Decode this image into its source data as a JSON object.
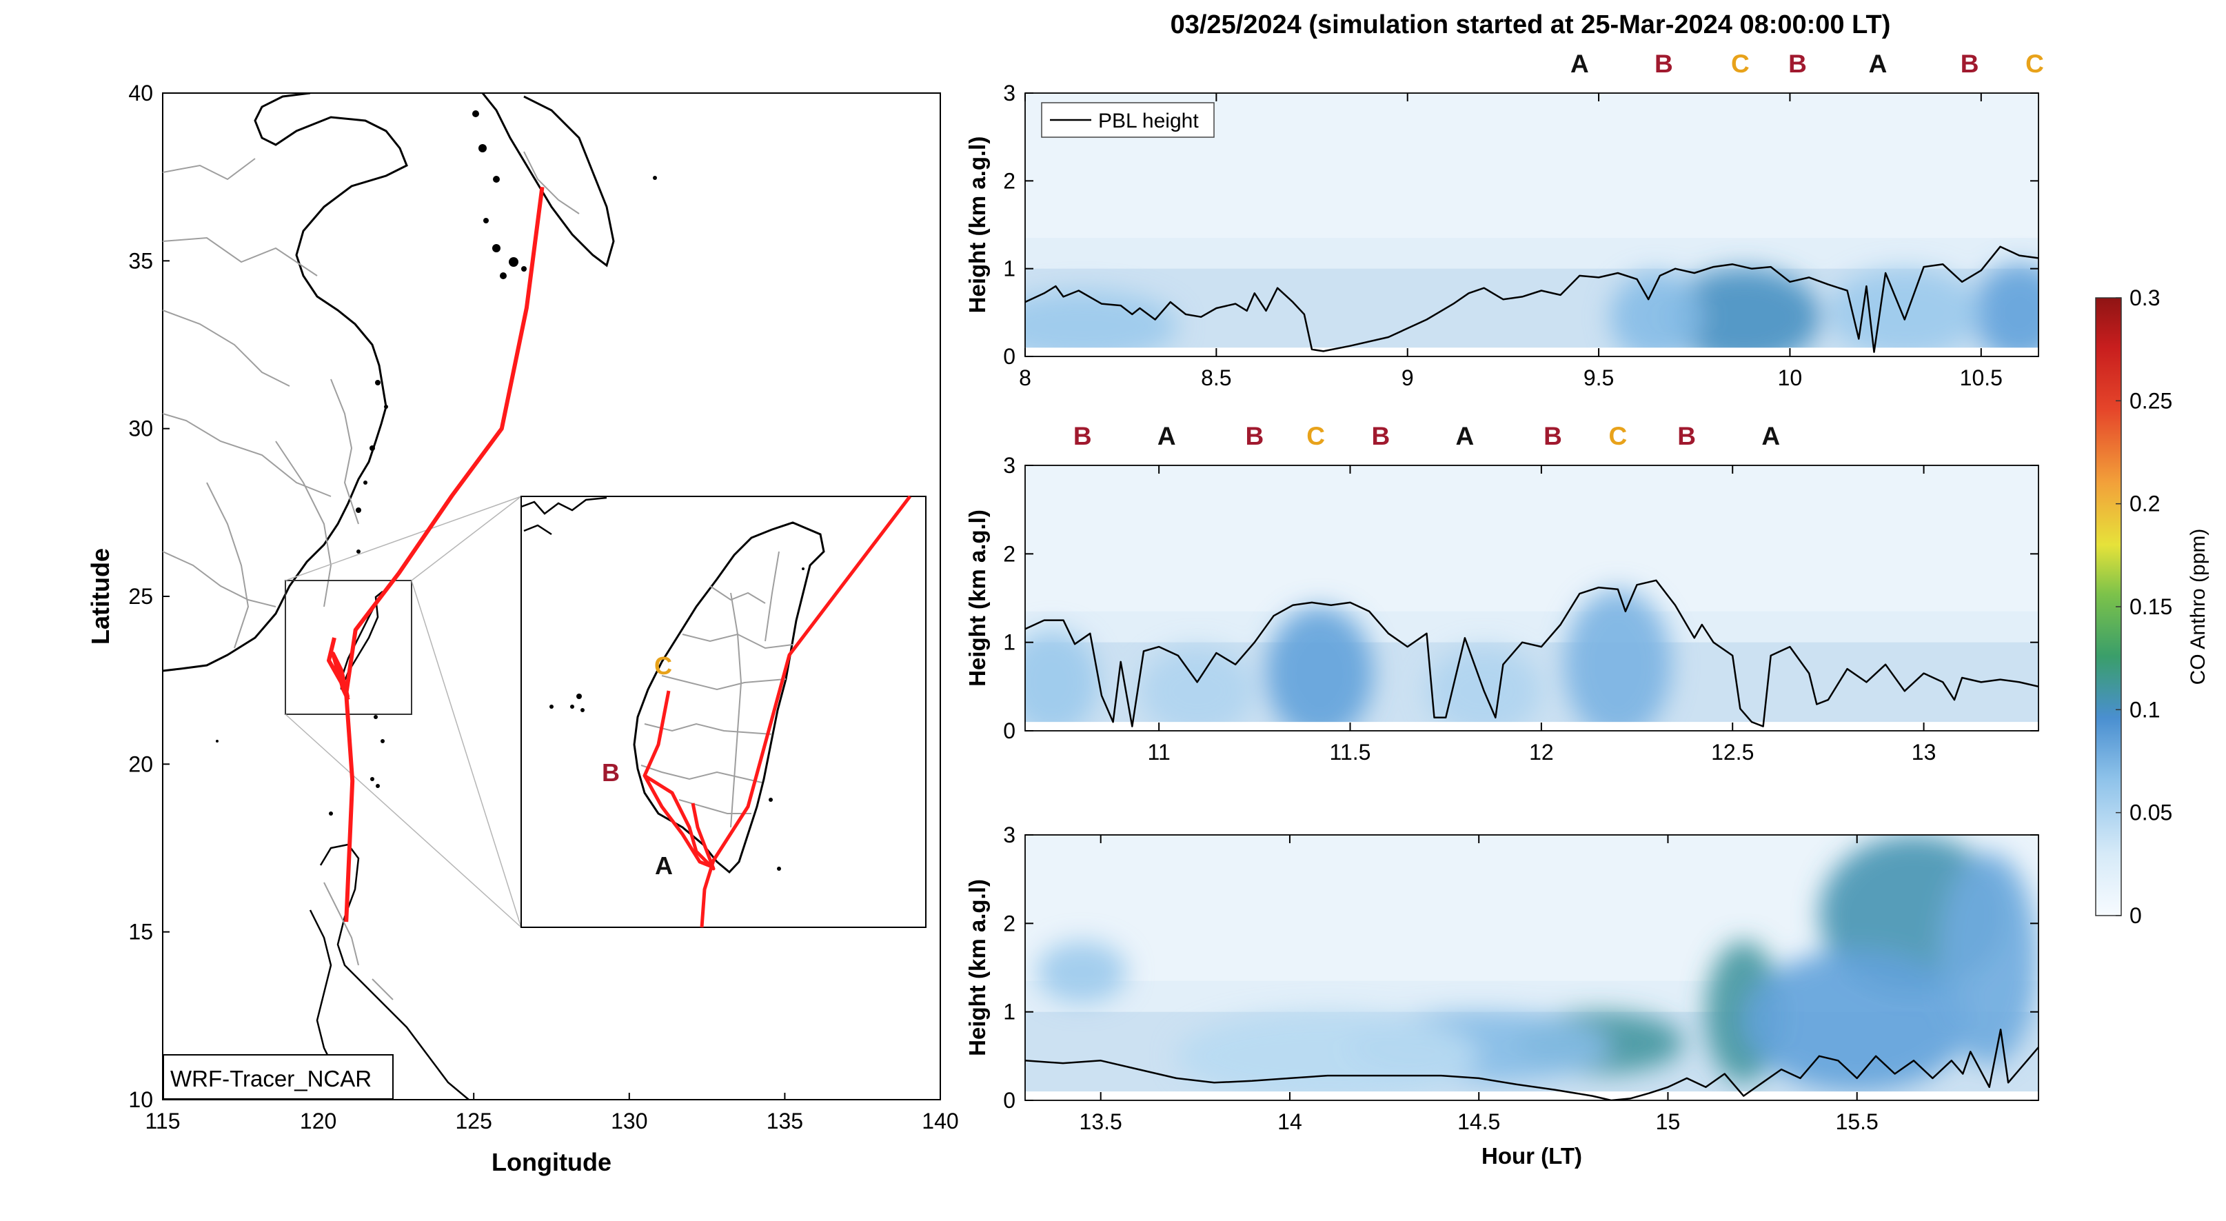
{
  "figure": {
    "title": "03/25/2024 (simulation started at 25-Mar-2024 08:00:00 LT)",
    "colors": {
      "track": "#ff1a1a",
      "marker_A": "#111111",
      "marker_B": "#a0192e",
      "marker_C": "#e8a21a",
      "pbl_line": "#000000",
      "land_border": "#9e9e9e",
      "coast": "#000000"
    }
  },
  "map": {
    "xlabel": "Longitude",
    "ylabel": "Latitude",
    "xlim": [
      115,
      140
    ],
    "ylim": [
      10,
      40
    ],
    "xticks": [
      "115",
      "120",
      "125",
      "130",
      "135",
      "140"
    ],
    "yticks": [
      "10",
      "15",
      "20",
      "25",
      "30",
      "35",
      "40"
    ],
    "model_label": "WRF-Tracer_NCAR",
    "track_main": [
      [
        120.9,
        15.3
      ],
      [
        121.1,
        19.5
      ],
      [
        120.9,
        22.1
      ],
      [
        121.2,
        24.0
      ],
      [
        122.6,
        25.7
      ],
      [
        124.3,
        28.0
      ],
      [
        125.9,
        30.0
      ],
      [
        126.7,
        33.6
      ],
      [
        127.2,
        37.2
      ]
    ],
    "inset_extent": {
      "lon": [
        119.0,
        123.0
      ],
      "lat": [
        21.5,
        26.0
      ]
    },
    "inset_labels": [
      {
        "text": "C",
        "color_key": "marker_C"
      },
      {
        "text": "B",
        "color_key": "marker_B"
      },
      {
        "text": "A",
        "color_key": "marker_A"
      }
    ]
  },
  "panels": [
    {
      "xlim": [
        8.0,
        10.65
      ],
      "xticks": [
        "8",
        "8.5",
        "9",
        "9.5",
        "10",
        "10.5"
      ],
      "ylabel": "Height (km a.g.l)",
      "yticks": [
        "0",
        "1",
        "2",
        "3"
      ],
      "ylim": [
        0,
        3
      ],
      "legend": "PBL height",
      "markers": [
        {
          "label": "A",
          "x": 9.45
        },
        {
          "label": "B",
          "x": 9.67
        },
        {
          "label": "C",
          "x": 9.87
        },
        {
          "label": "B",
          "x": 10.02
        },
        {
          "label": "A",
          "x": 10.23
        },
        {
          "label": "B",
          "x": 10.47
        },
        {
          "label": "C",
          "x": 10.64
        }
      ],
      "pbl": [
        [
          8.0,
          0.62
        ],
        [
          8.05,
          0.72
        ],
        [
          8.08,
          0.8
        ],
        [
          8.1,
          0.68
        ],
        [
          8.14,
          0.75
        ],
        [
          8.2,
          0.6
        ],
        [
          8.25,
          0.58
        ],
        [
          8.28,
          0.48
        ],
        [
          8.3,
          0.55
        ],
        [
          8.34,
          0.42
        ],
        [
          8.38,
          0.62
        ],
        [
          8.42,
          0.48
        ],
        [
          8.46,
          0.45
        ],
        [
          8.5,
          0.55
        ],
        [
          8.55,
          0.6
        ],
        [
          8.58,
          0.52
        ],
        [
          8.6,
          0.72
        ],
        [
          8.63,
          0.52
        ],
        [
          8.66,
          0.78
        ],
        [
          8.7,
          0.62
        ],
        [
          8.73,
          0.48
        ],
        [
          8.75,
          0.08
        ],
        [
          8.78,
          0.06
        ],
        [
          8.85,
          0.12
        ],
        [
          8.95,
          0.22
        ],
        [
          9.05,
          0.42
        ],
        [
          9.12,
          0.6
        ],
        [
          9.16,
          0.72
        ],
        [
          9.2,
          0.78
        ],
        [
          9.25,
          0.65
        ],
        [
          9.3,
          0.68
        ],
        [
          9.35,
          0.75
        ],
        [
          9.4,
          0.7
        ],
        [
          9.45,
          0.92
        ],
        [
          9.5,
          0.9
        ],
        [
          9.55,
          0.95
        ],
        [
          9.6,
          0.88
        ],
        [
          9.63,
          0.65
        ],
        [
          9.66,
          0.92
        ],
        [
          9.7,
          1.0
        ],
        [
          9.75,
          0.95
        ],
        [
          9.8,
          1.02
        ],
        [
          9.85,
          1.05
        ],
        [
          9.9,
          1.0
        ],
        [
          9.95,
          1.02
        ],
        [
          10.0,
          0.85
        ],
        [
          10.05,
          0.9
        ],
        [
          10.1,
          0.82
        ],
        [
          10.15,
          0.75
        ],
        [
          10.18,
          0.2
        ],
        [
          10.2,
          0.8
        ],
        [
          10.22,
          0.05
        ],
        [
          10.25,
          0.95
        ],
        [
          10.3,
          0.42
        ],
        [
          10.35,
          1.02
        ],
        [
          10.4,
          1.05
        ],
        [
          10.45,
          0.85
        ],
        [
          10.5,
          0.98
        ],
        [
          10.55,
          1.25
        ],
        [
          10.6,
          1.15
        ],
        [
          10.65,
          1.12
        ]
      ],
      "co_blobs": [
        {
          "x": 9.88,
          "y": 0.45,
          "rx": 0.2,
          "ry": 0.55,
          "ppm": 0.1
        },
        {
          "x": 10.6,
          "y": 0.5,
          "rx": 0.12,
          "ry": 0.55,
          "ppm": 0.085
        },
        {
          "x": 9.65,
          "y": 0.45,
          "rx": 0.12,
          "ry": 0.5,
          "ppm": 0.07
        },
        {
          "x": 8.15,
          "y": 0.35,
          "rx": 0.25,
          "ry": 0.4,
          "ppm": 0.06
        },
        {
          "x": 10.3,
          "y": 0.5,
          "rx": 0.2,
          "ry": 0.5,
          "ppm": 0.06
        }
      ]
    },
    {
      "xlim": [
        10.65,
        13.3
      ],
      "xticks": [
        "11",
        "11.5",
        "12",
        "12.5",
        "13"
      ],
      "ylabel": "Height (km a.g.l)",
      "yticks": [
        "0",
        "1",
        "2",
        "3"
      ],
      "ylim": [
        0,
        3
      ],
      "markers": [
        {
          "label": "B",
          "x": 10.8
        },
        {
          "label": "A",
          "x": 11.02
        },
        {
          "label": "B",
          "x": 11.25
        },
        {
          "label": "C",
          "x": 11.41
        },
        {
          "label": "B",
          "x": 11.58
        },
        {
          "label": "A",
          "x": 11.8
        },
        {
          "label": "B",
          "x": 12.03
        },
        {
          "label": "C",
          "x": 12.2
        },
        {
          "label": "B",
          "x": 12.38
        },
        {
          "label": "A",
          "x": 12.6
        }
      ],
      "pbl": [
        [
          10.65,
          1.15
        ],
        [
          10.7,
          1.25
        ],
        [
          10.75,
          1.25
        ],
        [
          10.78,
          0.98
        ],
        [
          10.82,
          1.1
        ],
        [
          10.85,
          0.4
        ],
        [
          10.88,
          0.1
        ],
        [
          10.9,
          0.78
        ],
        [
          10.93,
          0.05
        ],
        [
          10.96,
          0.9
        ],
        [
          11.0,
          0.95
        ],
        [
          11.05,
          0.85
        ],
        [
          11.1,
          0.55
        ],
        [
          11.15,
          0.88
        ],
        [
          11.2,
          0.75
        ],
        [
          11.25,
          1.0
        ],
        [
          11.3,
          1.3
        ],
        [
          11.35,
          1.42
        ],
        [
          11.4,
          1.45
        ],
        [
          11.45,
          1.42
        ],
        [
          11.5,
          1.45
        ],
        [
          11.55,
          1.35
        ],
        [
          11.6,
          1.1
        ],
        [
          11.65,
          0.95
        ],
        [
          11.7,
          1.1
        ],
        [
          11.72,
          0.15
        ],
        [
          11.75,
          0.15
        ],
        [
          11.8,
          1.05
        ],
        [
          11.85,
          0.45
        ],
        [
          11.88,
          0.15
        ],
        [
          11.9,
          0.75
        ],
        [
          11.95,
          1.0
        ],
        [
          12.0,
          0.95
        ],
        [
          12.05,
          1.2
        ],
        [
          12.1,
          1.55
        ],
        [
          12.15,
          1.62
        ],
        [
          12.2,
          1.6
        ],
        [
          12.22,
          1.35
        ],
        [
          12.25,
          1.65
        ],
        [
          12.3,
          1.7
        ],
        [
          12.35,
          1.42
        ],
        [
          12.4,
          1.05
        ],
        [
          12.42,
          1.2
        ],
        [
          12.45,
          1.0
        ],
        [
          12.5,
          0.85
        ],
        [
          12.52,
          0.25
        ],
        [
          12.55,
          0.1
        ],
        [
          12.58,
          0.05
        ],
        [
          12.6,
          0.85
        ],
        [
          12.65,
          0.95
        ],
        [
          12.7,
          0.65
        ],
        [
          12.72,
          0.3
        ],
        [
          12.75,
          0.35
        ],
        [
          12.8,
          0.7
        ],
        [
          12.85,
          0.55
        ],
        [
          12.9,
          0.75
        ],
        [
          12.95,
          0.45
        ],
        [
          13.0,
          0.65
        ],
        [
          13.05,
          0.55
        ],
        [
          13.08,
          0.35
        ],
        [
          13.1,
          0.6
        ],
        [
          13.15,
          0.55
        ],
        [
          13.2,
          0.58
        ],
        [
          13.25,
          0.55
        ],
        [
          13.3,
          0.5
        ]
      ],
      "co_blobs": [
        {
          "x": 11.42,
          "y": 0.65,
          "rx": 0.14,
          "ry": 0.75,
          "ppm": 0.085
        },
        {
          "x": 12.2,
          "y": 0.75,
          "rx": 0.14,
          "ry": 0.85,
          "ppm": 0.075
        },
        {
          "x": 10.72,
          "y": 0.55,
          "rx": 0.12,
          "ry": 0.6,
          "ppm": 0.06
        },
        {
          "x": 11.1,
          "y": 0.45,
          "rx": 0.15,
          "ry": 0.5,
          "ppm": 0.05
        },
        {
          "x": 11.85,
          "y": 0.45,
          "rx": 0.15,
          "ry": 0.5,
          "ppm": 0.05
        }
      ]
    },
    {
      "xlim": [
        13.3,
        15.98
      ],
      "xticks": [
        "13.5",
        "14",
        "14.5",
        "15",
        "15.5"
      ],
      "xlabel": "Hour (LT)",
      "ylabel": "Height (km a.g.l)",
      "yticks": [
        "0",
        "1",
        "2",
        "3"
      ],
      "ylim": [
        0,
        3
      ],
      "pbl": [
        [
          13.3,
          0.45
        ],
        [
          13.4,
          0.42
        ],
        [
          13.5,
          0.45
        ],
        [
          13.6,
          0.35
        ],
        [
          13.7,
          0.25
        ],
        [
          13.8,
          0.2
        ],
        [
          13.9,
          0.22
        ],
        [
          14.0,
          0.25
        ],
        [
          14.1,
          0.28
        ],
        [
          14.2,
          0.28
        ],
        [
          14.3,
          0.28
        ],
        [
          14.4,
          0.28
        ],
        [
          14.5,
          0.25
        ],
        [
          14.6,
          0.18
        ],
        [
          14.7,
          0.12
        ],
        [
          14.8,
          0.05
        ],
        [
          14.85,
          0.0
        ],
        [
          14.9,
          0.02
        ],
        [
          14.95,
          0.08
        ],
        [
          15.0,
          0.15
        ],
        [
          15.05,
          0.25
        ],
        [
          15.1,
          0.15
        ],
        [
          15.15,
          0.3
        ],
        [
          15.2,
          0.05
        ],
        [
          15.25,
          0.2
        ],
        [
          15.3,
          0.35
        ],
        [
          15.35,
          0.25
        ],
        [
          15.4,
          0.5
        ],
        [
          15.45,
          0.45
        ],
        [
          15.5,
          0.25
        ],
        [
          15.55,
          0.5
        ],
        [
          15.6,
          0.3
        ],
        [
          15.65,
          0.45
        ],
        [
          15.7,
          0.25
        ],
        [
          15.75,
          0.45
        ],
        [
          15.78,
          0.3
        ],
        [
          15.8,
          0.55
        ],
        [
          15.85,
          0.15
        ],
        [
          15.88,
          0.8
        ],
        [
          15.9,
          0.2
        ],
        [
          15.95,
          0.45
        ],
        [
          15.98,
          0.6
        ]
      ],
      "co_blobs": [
        {
          "x": 14.82,
          "y": 0.65,
          "rx": 0.22,
          "ry": 0.35,
          "ppm": 0.11
        },
        {
          "x": 15.2,
          "y": 1.0,
          "rx": 0.1,
          "ry": 0.8,
          "ppm": 0.11
        },
        {
          "x": 15.65,
          "y": 2.1,
          "rx": 0.25,
          "ry": 0.9,
          "ppm": 0.105
        },
        {
          "x": 15.5,
          "y": 0.9,
          "rx": 0.3,
          "ry": 0.8,
          "ppm": 0.085
        },
        {
          "x": 14.5,
          "y": 0.6,
          "rx": 0.35,
          "ry": 0.4,
          "ppm": 0.07
        },
        {
          "x": 13.45,
          "y": 1.45,
          "rx": 0.12,
          "ry": 0.35,
          "ppm": 0.06
        },
        {
          "x": 15.85,
          "y": 1.6,
          "rx": 0.13,
          "ry": 1.2,
          "ppm": 0.08
        },
        {
          "x": 14.1,
          "y": 0.5,
          "rx": 0.4,
          "ry": 0.5,
          "ppm": 0.045
        }
      ]
    }
  ],
  "colorbar": {
    "label": "CO Anthro (ppm)",
    "ticks": [
      "0",
      "0.05",
      "0.1",
      "0.15",
      "0.2",
      "0.25",
      "0.3"
    ],
    "range": [
      0,
      0.3
    ]
  },
  "chart_data": [
    {
      "type": "line",
      "title": "WRF-Tracer_NCAR",
      "xlabel": "Longitude",
      "ylabel": "Latitude",
      "xlim": [
        115,
        140
      ],
      "ylim": [
        10,
        40
      ],
      "series": [
        {
          "x": [
            120.9,
            121.1,
            120.9,
            121.2,
            122.6,
            124.3,
            125.9,
            126.7,
            127.2
          ],
          "y": [
            15.3,
            19.5,
            22.1,
            24.0,
            25.7,
            28.0,
            30.0,
            33.6,
            37.2
          ]
        }
      ]
    },
    {
      "type": "heatmap",
      "title": "03/25/2024 (simulation started at 25-Mar-2024 08:00:00 LT)",
      "xlabel": "Hour (LT)",
      "ylabel": "Height (km a.g.l)",
      "xlim": [
        8.0,
        15.98
      ],
      "ylim": [
        0,
        3
      ],
      "colorbar_label": "CO Anthro (ppm)",
      "colorbar_range": [
        0,
        0.3
      ],
      "series": [
        {
          "name": "PBL height",
          "note_x": "hour",
          "note_y": "km"
        }
      ]
    }
  ]
}
